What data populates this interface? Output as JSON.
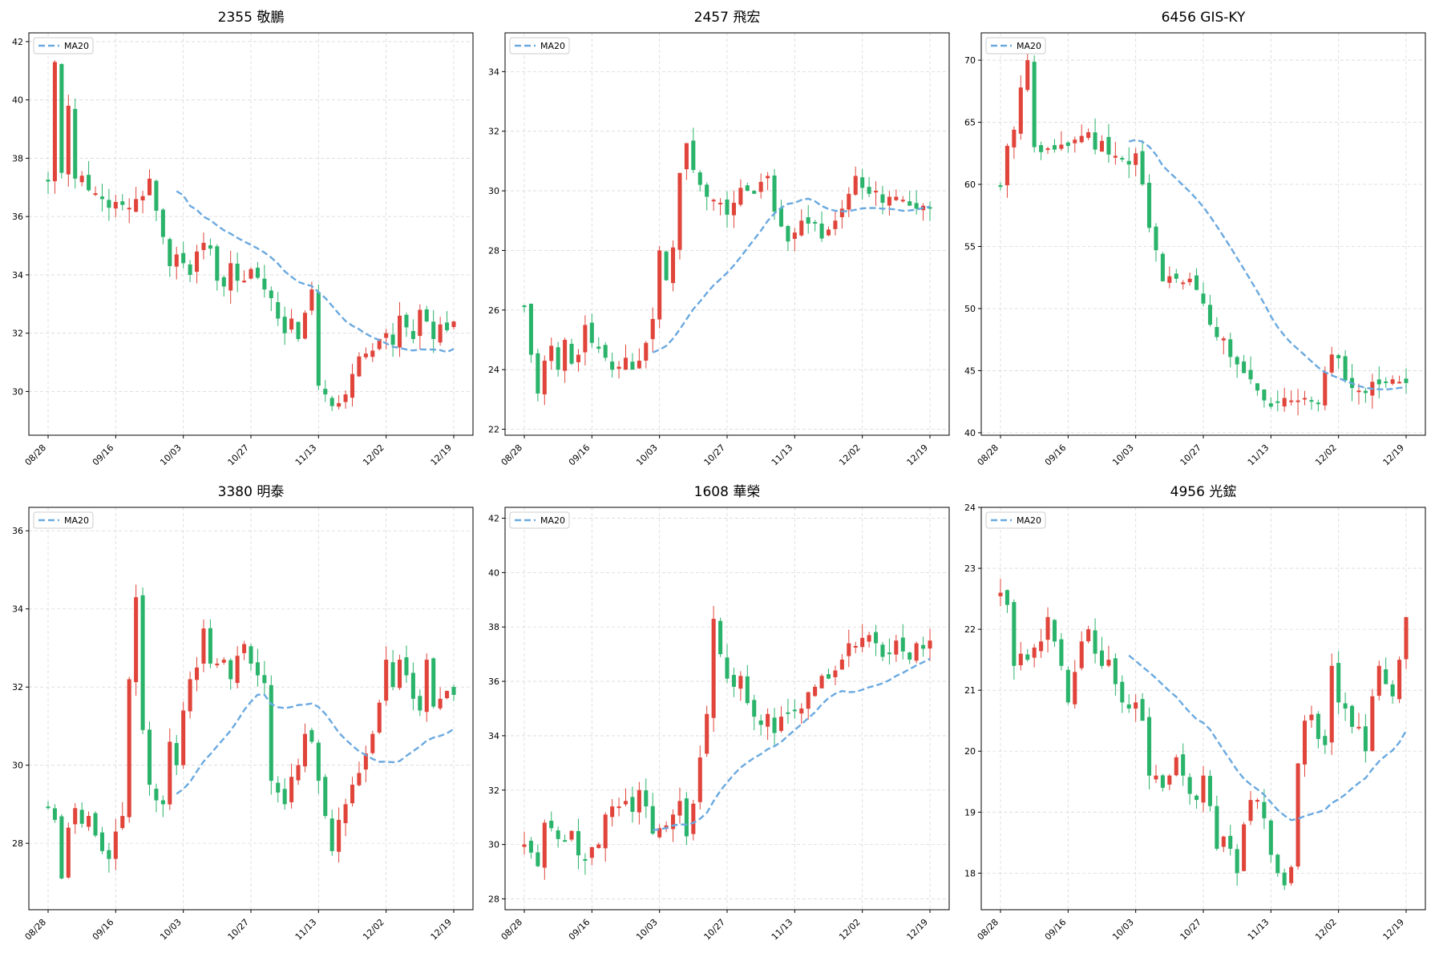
{
  "figure": {
    "colors": {
      "up": "#e0443a",
      "down": "#2ab36a",
      "ma": "#6aa9e0"
    }
  },
  "chart_data": [
    {
      "type": "candlestick",
      "title": "2355 敬鵬",
      "legend": {
        "label": "MA20",
        "position": "top-left"
      },
      "grid": true,
      "x_tick_labels": [
        "08/28",
        "09/16",
        "10/03",
        "10/27",
        "11/13",
        "12/02",
        "12/19"
      ],
      "x_tick_index": [
        0,
        10,
        20,
        30,
        40,
        50,
        60
      ],
      "ylim": [
        28.5,
        42.3
      ],
      "y_ticks": [
        30,
        32,
        34,
        36,
        38,
        40,
        42
      ],
      "closes": [
        37.2,
        41.3,
        37.5,
        39.8,
        37.3,
        37.4,
        36.9,
        36.8,
        36.6,
        36.3,
        36.5,
        36.4,
        36.3,
        36.6,
        36.7,
        37.3,
        36.2,
        35.3,
        34.3,
        34.7,
        34.4,
        34.0,
        34.8,
        35.1,
        34.9,
        33.8,
        33.6,
        34.4,
        33.8,
        33.8,
        34.2,
        33.9,
        33.5,
        33.2,
        32.5,
        32.0,
        32.5,
        31.8,
        32.7,
        33.5,
        30.2,
        29.9,
        29.5,
        29.6,
        29.9,
        30.6,
        31.2,
        31.3,
        31.4,
        31.8,
        32.0,
        31.6,
        32.6,
        32.2,
        31.8,
        32.8,
        32.4,
        31.8,
        32.3,
        32.1,
        32.4
      ]
    },
    {
      "type": "candlestick",
      "title": "2457 飛宏",
      "legend": {
        "label": "MA20",
        "position": "top-left"
      },
      "grid": true,
      "x_tick_labels": [
        "08/28",
        "09/16",
        "10/03",
        "10/27",
        "11/13",
        "12/02",
        "12/19"
      ],
      "x_tick_index": [
        0,
        10,
        20,
        30,
        40,
        50,
        60
      ],
      "ylim": [
        21.8,
        35.3
      ],
      "y_ticks": [
        22,
        24,
        26,
        28,
        30,
        32,
        34
      ],
      "closes": [
        26.1,
        24.5,
        23.2,
        24.3,
        24.8,
        24.0,
        25.0,
        24.2,
        24.5,
        25.5,
        24.9,
        24.7,
        24.4,
        24.0,
        24.1,
        24.4,
        24.0,
        24.3,
        24.9,
        25.7,
        28.0,
        27.0,
        28.1,
        30.6,
        31.6,
        30.7,
        30.2,
        29.8,
        29.7,
        29.6,
        29.2,
        29.6,
        30.1,
        30.0,
        29.9,
        30.3,
        30.5,
        29.3,
        28.8,
        28.3,
        28.6,
        29.0,
        28.9,
        28.9,
        28.4,
        28.7,
        29.0,
        29.4,
        29.9,
        30.5,
        30.1,
        29.9,
        30.0,
        29.6,
        29.8,
        29.8,
        29.7,
        29.5,
        29.4,
        29.5,
        29.4
      ]
    },
    {
      "type": "candlestick",
      "title": "6456 GIS-KY",
      "legend": {
        "label": "MA20",
        "position": "top-left"
      },
      "grid": true,
      "x_tick_labels": [
        "08/28",
        "09/16",
        "10/03",
        "10/27",
        "11/13",
        "12/02",
        "12/19"
      ],
      "x_tick_index": [
        0,
        10,
        20,
        30,
        40,
        50,
        60
      ],
      "ylim": [
        39.8,
        72.2
      ],
      "y_ticks": [
        40,
        45,
        50,
        55,
        60,
        65,
        70
      ],
      "closes": [
        59.8,
        63.1,
        64.4,
        67.8,
        70.0,
        63.0,
        62.6,
        62.9,
        62.8,
        63.2,
        63.1,
        63.6,
        63.9,
        64.2,
        62.8,
        63.5,
        62.4,
        62.3,
        62.0,
        61.6,
        62.5,
        60.0,
        56.5,
        54.7,
        52.2,
        52.6,
        52.4,
        52.1,
        52.4,
        51.5,
        50.4,
        48.7,
        47.7,
        47.6,
        46.1,
        45.5,
        44.8,
        44.3,
        43.4,
        42.6,
        42.1,
        42.4,
        42.8,
        42.6,
        42.6,
        42.8,
        42.5,
        42.3,
        44.9,
        46.3,
        46.0,
        44.2,
        43.6,
        43.4,
        43.2,
        44.1,
        43.9,
        44.0,
        44.3,
        44.1,
        44.0
      ]
    },
    {
      "type": "candlestick",
      "title": "3380 明泰",
      "legend": {
        "label": "MA20",
        "position": "top-left"
      },
      "grid": true,
      "x_tick_labels": [
        "08/28",
        "09/16",
        "10/03",
        "10/27",
        "11/13",
        "12/02",
        "12/19"
      ],
      "x_tick_index": [
        0,
        10,
        20,
        30,
        40,
        50,
        60
      ],
      "ylim": [
        26.3,
        36.6
      ],
      "y_ticks": [
        28,
        30,
        32,
        34,
        36
      ],
      "closes": [
        28.9,
        28.6,
        27.1,
        28.4,
        28.9,
        28.5,
        28.7,
        28.2,
        27.8,
        27.6,
        28.3,
        28.7,
        32.2,
        34.3,
        30.9,
        29.5,
        29.1,
        29.0,
        30.6,
        30.0,
        31.4,
        32.2,
        32.5,
        33.5,
        32.6,
        32.6,
        32.7,
        32.2,
        32.8,
        33.1,
        32.6,
        32.3,
        32.1,
        29.6,
        29.3,
        29.0,
        29.7,
        30.0,
        30.8,
        30.6,
        29.6,
        28.7,
        27.8,
        28.6,
        29.0,
        29.5,
        29.8,
        30.3,
        30.8,
        31.6,
        32.7,
        32.0,
        32.7,
        32.3,
        31.7,
        31.4,
        32.7,
        31.5,
        31.7,
        31.9,
        31.8
      ]
    },
    {
      "type": "candlestick",
      "title": "1608 華榮",
      "legend": {
        "label": "MA20",
        "position": "top-left"
      },
      "grid": true,
      "x_tick_labels": [
        "08/28",
        "09/16",
        "10/03",
        "10/27",
        "11/13",
        "12/02",
        "12/19"
      ],
      "x_tick_index": [
        0,
        10,
        20,
        30,
        40,
        50,
        60
      ],
      "ylim": [
        27.6,
        42.4
      ],
      "y_ticks": [
        28,
        30,
        32,
        34,
        36,
        38,
        40,
        42
      ],
      "closes": [
        30.0,
        29.7,
        29.2,
        30.8,
        30.6,
        30.2,
        30.1,
        30.5,
        29.6,
        29.4,
        29.9,
        30.0,
        31.1,
        31.4,
        31.4,
        31.6,
        31.2,
        32.0,
        31.4,
        30.4,
        30.6,
        30.7,
        31.1,
        31.6,
        30.3,
        31.5,
        33.2,
        34.8,
        38.3,
        37.0,
        36.1,
        35.8,
        36.2,
        35.2,
        34.7,
        34.4,
        34.8,
        34.1,
        34.7,
        34.8,
        34.9,
        35.0,
        35.6,
        35.8,
        36.2,
        36.1,
        36.4,
        36.8,
        37.4,
        37.3,
        37.6,
        37.7,
        37.4,
        36.9,
        37.0,
        37.5,
        37.1,
        36.8,
        37.4,
        37.2,
        37.5
      ]
    },
    {
      "type": "candlestick",
      "title": "4956 光鋐",
      "legend": {
        "label": "MA20",
        "position": "top-left"
      },
      "grid": true,
      "x_tick_labels": [
        "08/28",
        "09/16",
        "10/03",
        "10/27",
        "11/13",
        "12/02",
        "12/19"
      ],
      "x_tick_index": [
        0,
        10,
        20,
        30,
        40,
        50,
        60
      ],
      "ylim": [
        17.4,
        24.0
      ],
      "y_ticks": [
        18,
        19,
        20,
        21,
        22,
        23,
        24
      ],
      "closes": [
        22.6,
        22.4,
        21.4,
        21.6,
        21.5,
        21.7,
        21.8,
        22.2,
        21.8,
        21.4,
        20.8,
        21.3,
        21.8,
        22.0,
        21.6,
        21.4,
        21.5,
        21.1,
        20.8,
        20.7,
        20.8,
        20.5,
        19.6,
        19.6,
        19.4,
        19.6,
        19.9,
        19.6,
        19.3,
        19.2,
        19.6,
        19.1,
        18.4,
        18.6,
        18.4,
        18.0,
        18.8,
        19.2,
        19.2,
        18.9,
        18.3,
        18.0,
        17.8,
        18.1,
        19.8,
        20.5,
        20.6,
        20.2,
        20.1,
        21.4,
        20.8,
        20.7,
        20.4,
        20.4,
        20.0,
        20.9,
        21.4,
        21.1,
        20.9,
        21.5,
        22.2
      ]
    }
  ]
}
